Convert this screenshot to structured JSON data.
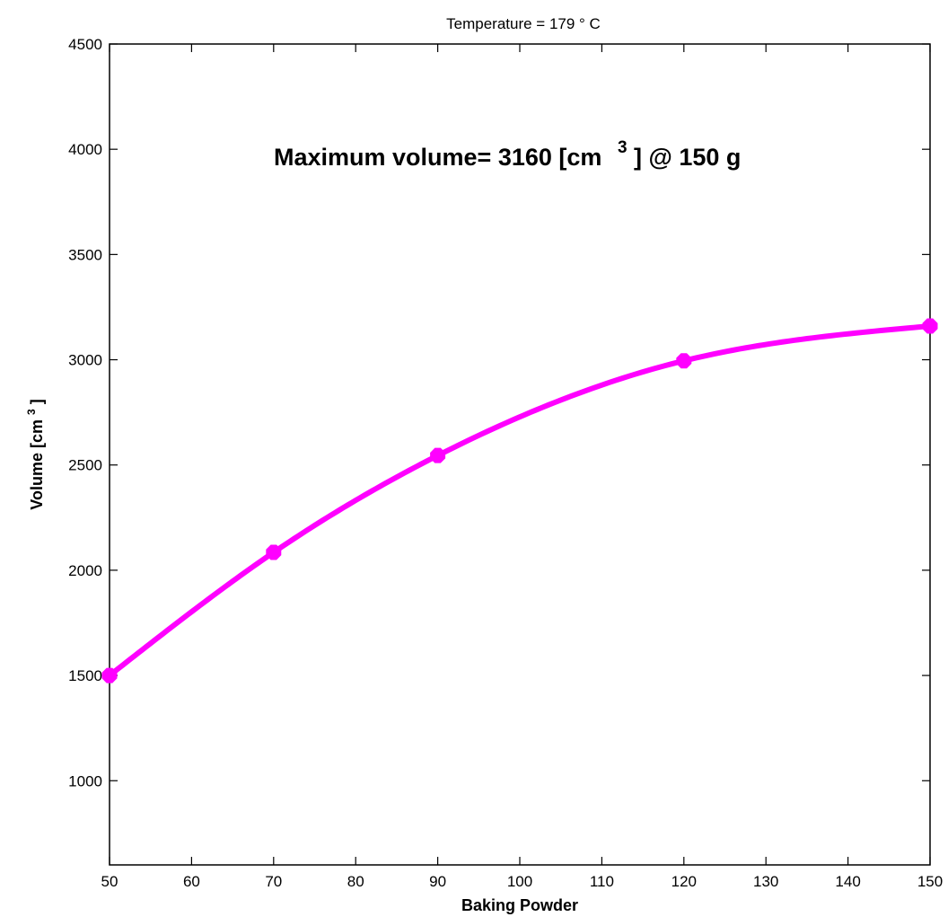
{
  "chart_data": {
    "type": "line",
    "title": "Temperature = 179 ° C",
    "xlabel": "Baking Powder",
    "ylabel_main": "Volume [cm",
    "ylabel_sup": "3",
    "ylabel_end": "]",
    "annotation_main": "Maximum volume= 3160 [cm",
    "annotation_sup": "3",
    "annotation_end": "] @ 150 g",
    "xlim": [
      50,
      150
    ],
    "ylim": [
      600,
      4500
    ],
    "xticks": [
      50,
      60,
      70,
      80,
      90,
      100,
      110,
      120,
      130,
      140,
      150
    ],
    "yticks": [
      1000,
      1500,
      2000,
      2500,
      3000,
      3500,
      4000,
      4500
    ],
    "grid": false,
    "series": [
      {
        "x": [
          50,
          70,
          90,
          120,
          150
        ],
        "y": [
          1500,
          2085,
          2545,
          2995,
          3160
        ],
        "color": "#ff00ff"
      }
    ]
  }
}
